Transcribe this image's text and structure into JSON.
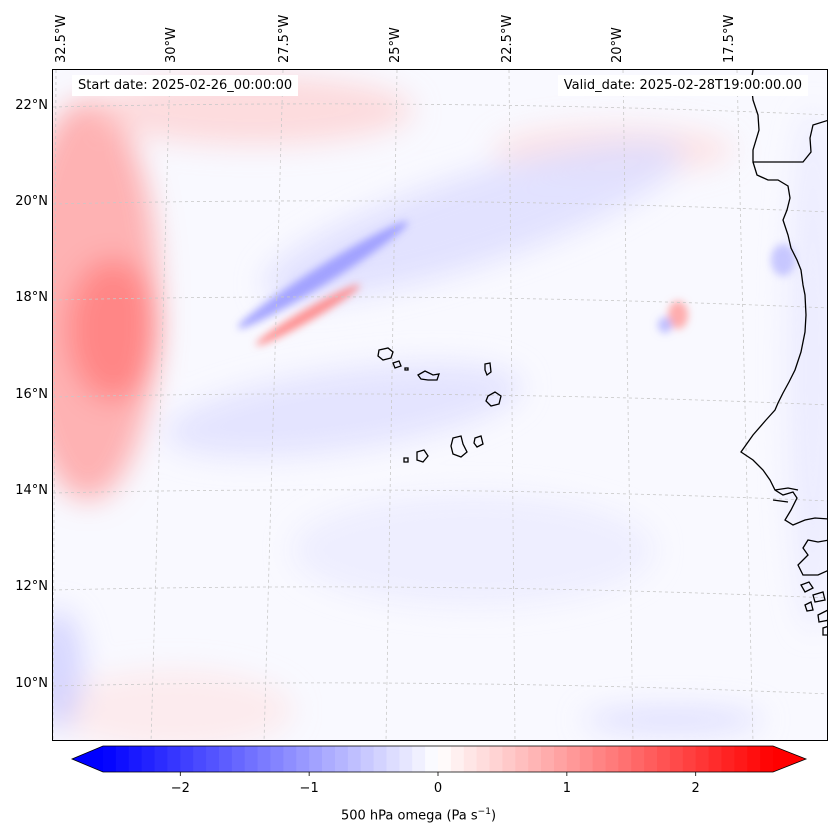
{
  "header": {
    "start_date": "Start date: 2025-02-26_00:00:00",
    "valid_date": "Valid_date: 2025-02-28T19:00:00.00"
  },
  "axes": {
    "lon_labels": [
      "32.5°W",
      "30°W",
      "27.5°W",
      "25°W",
      "22.5°W",
      "20°W",
      "17.5°W"
    ],
    "lat_labels": [
      "22°N",
      "20°N",
      "18°N",
      "16°N",
      "14°N",
      "12°N",
      "10°N"
    ]
  },
  "colorbar": {
    "label_main": "500 hPa omega (Pa s",
    "label_exp": "−1",
    "label_close": ")",
    "ticks": [
      "−2",
      "−1",
      "0",
      "1",
      "2"
    ],
    "tick_values": [
      -2,
      -1,
      0,
      1,
      2
    ],
    "range": [
      -2.6,
      2.6
    ],
    "low_color": "#0000ff",
    "mid_color": "#ffffff",
    "high_color": "#ff0000"
  },
  "map": {
    "background_color": "#f9f9ff",
    "coastline_color": "#000000",
    "gridline_color": "#c8c8c8"
  }
}
